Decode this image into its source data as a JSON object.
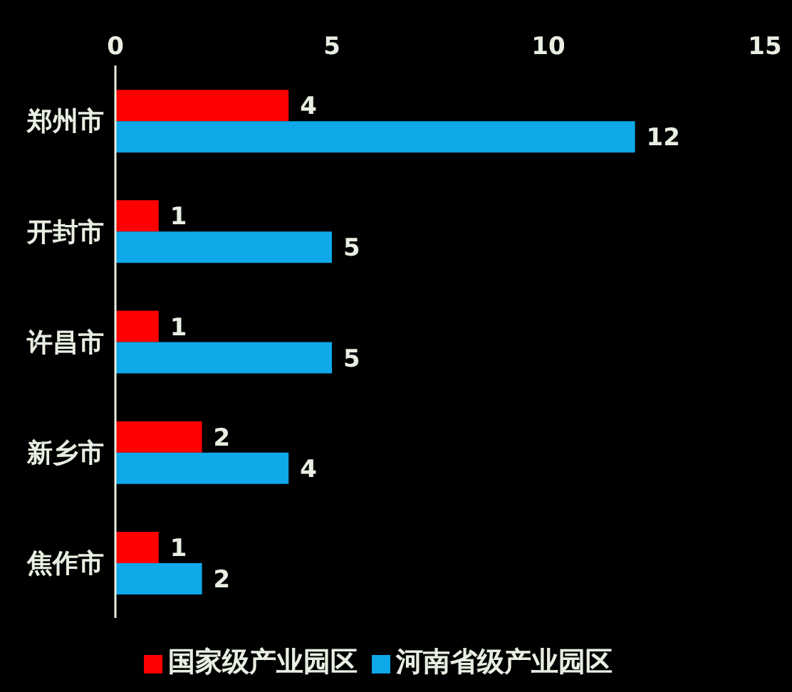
{
  "chart_data": {
    "type": "bar",
    "orientation": "horizontal",
    "categories": [
      "郑州市",
      "开封市",
      "许昌市",
      "新乡市",
      "焦作市"
    ],
    "series": [
      {
        "name": "国家级产业园区",
        "color": "#ff0000",
        "values": [
          4,
          1,
          1,
          2,
          1
        ]
      },
      {
        "name": "河南省级产业园区",
        "color": "#0fa8e8",
        "values": [
          12,
          5,
          5,
          4,
          2
        ]
      }
    ],
    "xlim": [
      0,
      15
    ],
    "xticks": [
      0,
      5,
      10,
      15
    ],
    "legend": "bottom",
    "data_labels": true
  }
}
